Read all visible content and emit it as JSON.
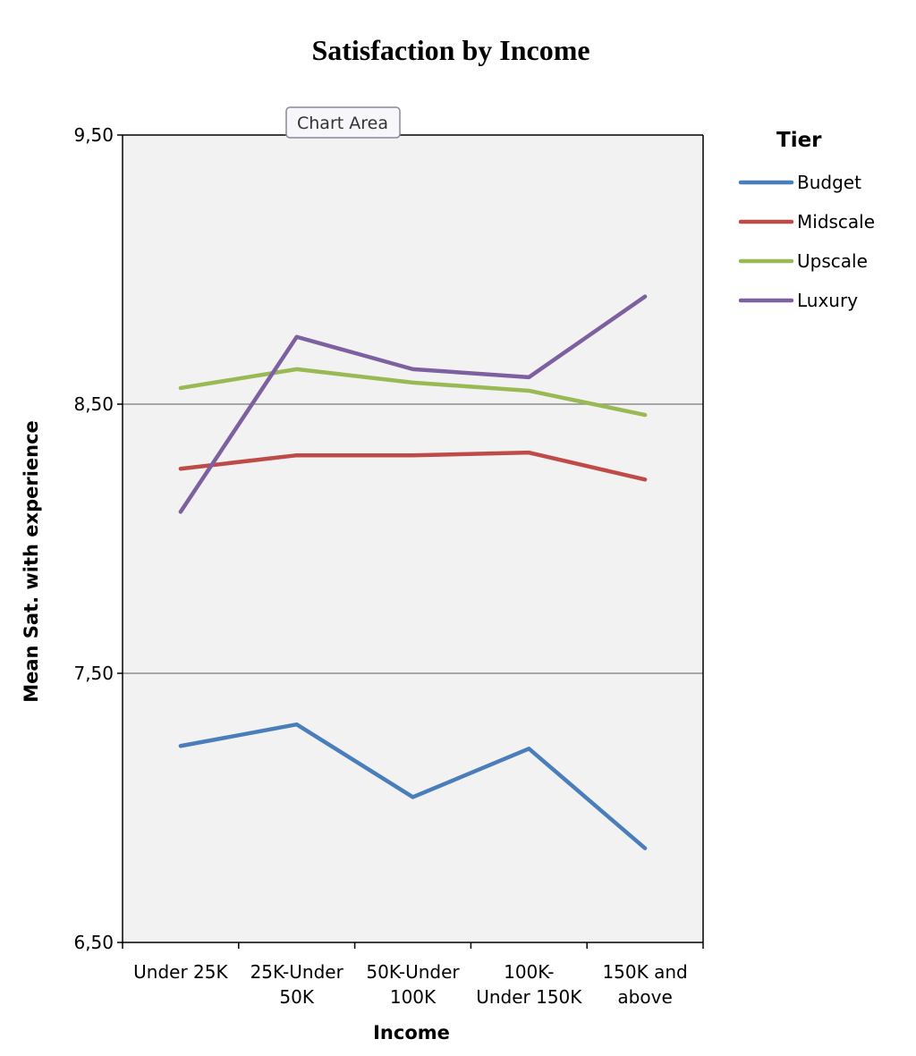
{
  "chart_data": {
    "type": "line",
    "title": "Satisfaction by Income",
    "xlabel": "Income",
    "ylabel": "Mean Sat. with experience",
    "ylim": [
      6.5,
      9.5
    ],
    "ytick_labels": [
      "6,50",
      "7,50",
      "8,50",
      "9,50"
    ],
    "ytick_values": [
      6.5,
      7.5,
      8.5,
      9.5
    ],
    "categories": [
      [
        "Under 25K"
      ],
      [
        "25K-Under",
        "50K"
      ],
      [
        "50K-Under",
        "100K"
      ],
      [
        "100K-",
        "Under 150K"
      ],
      [
        "150K and",
        "above"
      ]
    ],
    "legend_title": "Tier",
    "series": [
      {
        "name": "Budget",
        "color": "#4a7ebb",
        "values": [
          7.23,
          7.31,
          7.04,
          7.22,
          6.85
        ]
      },
      {
        "name": "Midscale",
        "color": "#be4b48",
        "values": [
          8.26,
          8.31,
          8.31,
          8.32,
          8.22
        ]
      },
      {
        "name": "Upscale",
        "color": "#98b954",
        "values": [
          8.56,
          8.63,
          8.58,
          8.55,
          8.46
        ]
      },
      {
        "name": "Luxury",
        "color": "#7d60a0",
        "values": [
          8.1,
          8.75,
          8.63,
          8.6,
          8.9
        ]
      }
    ],
    "tooltip": "Chart Area"
  }
}
